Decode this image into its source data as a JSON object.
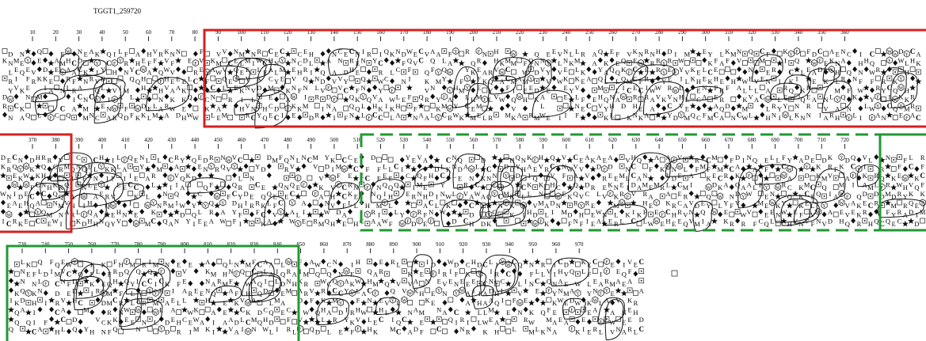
{
  "figure": {
    "title": "TGGT1_259720",
    "rows": [
      {
        "ticks": [
          10,
          20,
          30,
          40,
          50,
          60,
          70,
          80,
          90,
          100,
          110,
          120,
          130,
          140,
          150,
          160,
          170,
          180,
          190,
          200,
          210,
          220,
          230,
          240,
          250,
          260,
          270,
          280,
          290,
          300,
          310,
          320,
          330,
          340,
          350,
          360
        ]
      },
      {
        "ticks": [
          370,
          380,
          390,
          400,
          410,
          420,
          430,
          440,
          450,
          460,
          470,
          480,
          490,
          500,
          510,
          520,
          530,
          540,
          550,
          560,
          570,
          580,
          590,
          600,
          610,
          620,
          630,
          640,
          650,
          660,
          670,
          680,
          690,
          700,
          710,
          720
        ]
      },
      {
        "ticks": [
          730,
          740,
          750,
          760,
          770,
          780,
          790,
          800,
          810,
          820,
          830,
          840,
          850,
          860,
          870,
          880,
          890,
          900,
          910,
          920,
          930,
          940,
          950,
          960,
          970
        ]
      }
    ],
    "legend_symbols": [
      "star = proline",
      "diamond = glycine",
      "square = threonine",
      "dotted square = serine",
      "bold C = cysteine",
      "contoured clusters = hydrophobic clusters"
    ],
    "colors": {
      "red_box": "#d62020",
      "green_box": "#229933",
      "ink": "#111111"
    }
  }
}
